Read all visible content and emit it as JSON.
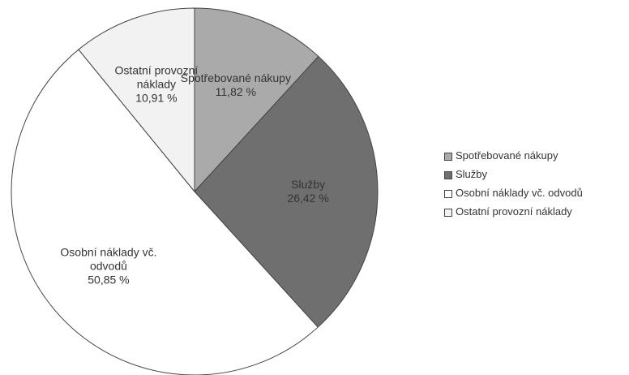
{
  "chart_data": {
    "type": "pie",
    "categories": [
      "Spotřebované nákupy",
      "Služby",
      "Osobní náklady vč. odvodů",
      "Ostatní provozní náklady"
    ],
    "values": [
      11.82,
      26.42,
      50.85,
      10.91
    ],
    "value_labels": [
      "11,82 %",
      "26,42 %",
      "50,85 %",
      "10,91 %"
    ],
    "colors": [
      "#aaaaaa",
      "#6f6f6f",
      "#ffffff",
      "#f2f2f2"
    ],
    "legend": "right"
  }
}
